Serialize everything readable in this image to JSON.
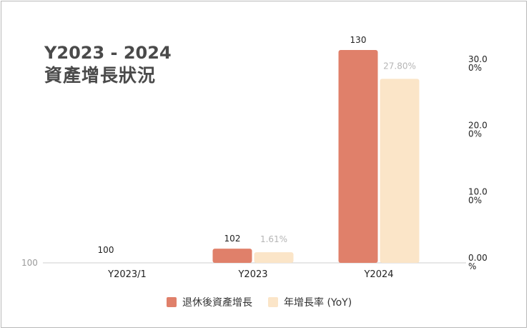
{
  "title": {
    "line1": "Y2023 - 2024",
    "line2": "資產增長狀況"
  },
  "colors": {
    "growth": "#e0806a",
    "yoy": "#fbe5c8",
    "axis": "#cfcfcf",
    "muted": "#9a9a9a",
    "text": "#222222"
  },
  "chart_data": {
    "type": "bar",
    "categories": [
      "Y2023/1",
      "Y2023",
      "Y2024"
    ],
    "series": [
      {
        "name": "退休後資產增長",
        "values": [
          100,
          102,
          130
        ],
        "labels": [
          "100",
          "102",
          "130"
        ],
        "axis": "left",
        "color": "#e0806a"
      },
      {
        "name": "年增長率 (YoY)",
        "values": [
          null,
          1.61,
          27.8
        ],
        "labels": [
          "",
          "1.61%",
          "27.80%"
        ],
        "axis": "right",
        "color": "#fbe5c8"
      }
    ],
    "left_axis": {
      "baseline_label": "100",
      "min": 100,
      "max": 130
    },
    "right_axis": {
      "min": 0,
      "max": 30,
      "ticks": [
        {
          "value": 30,
          "line1": "30.0",
          "line2": "0%"
        },
        {
          "value": 20,
          "line1": "20.0",
          "line2": "0%"
        },
        {
          "value": 10,
          "line1": "10.0",
          "line2": "0%"
        },
        {
          "value": 0,
          "line1": "0.00",
          "line2": "%"
        }
      ]
    },
    "legend": {
      "position": "bottom"
    }
  }
}
